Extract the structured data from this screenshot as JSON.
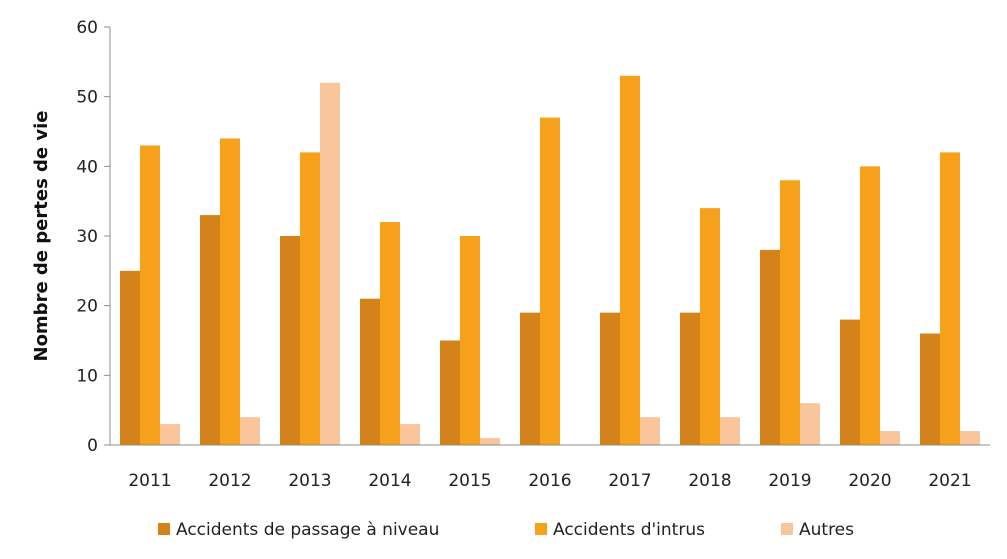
{
  "chart_data": {
    "type": "bar",
    "title": "",
    "xlabel": "",
    "ylabel": "Nombre de pertes de vie",
    "ylim": [
      0,
      60
    ],
    "yticks": [
      0,
      10,
      20,
      30,
      40,
      50,
      60
    ],
    "grid": false,
    "legend_position": "bottom",
    "categories": [
      "2011",
      "2012",
      "2013",
      "2014",
      "2015",
      "2016",
      "2017",
      "2018",
      "2019",
      "2020",
      "2021"
    ],
    "series": [
      {
        "name": "Accidents de passage à niveau",
        "color": "#D4821A",
        "values": [
          25,
          33,
          30,
          21,
          15,
          19,
          19,
          19,
          28,
          18,
          16
        ]
      },
      {
        "name": "Accidents d'intrus",
        "color": "#F5A11C",
        "values": [
          43,
          44,
          42,
          32,
          30,
          47,
          53,
          34,
          38,
          40,
          42
        ]
      },
      {
        "name": "Autres",
        "color": "#F9C59A",
        "values": [
          3,
          4,
          52,
          3,
          1,
          0,
          4,
          4,
          6,
          2,
          2
        ]
      }
    ]
  }
}
